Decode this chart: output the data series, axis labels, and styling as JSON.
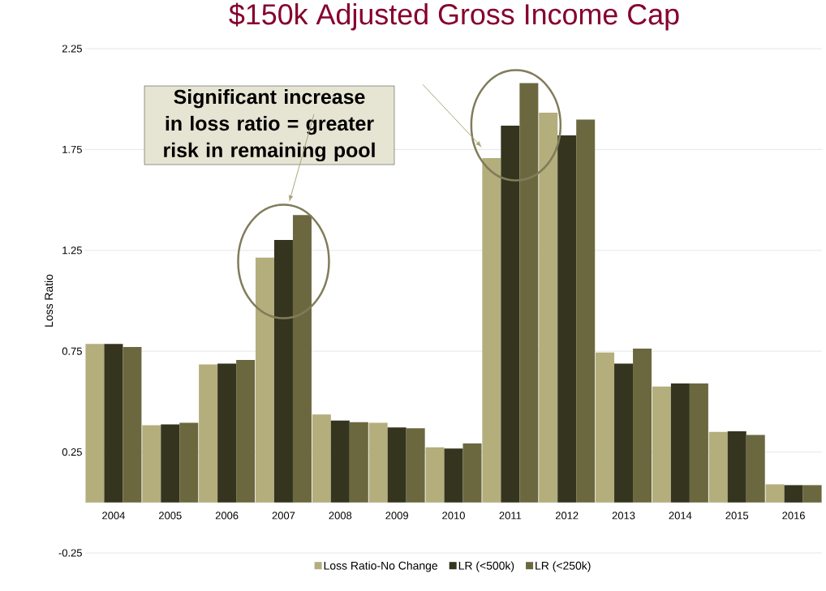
{
  "chart_data": {
    "type": "bar",
    "title": "$150k Adjusted Gross Income Cap",
    "ylabel": "Loss Ratio",
    "categories": [
      "2004",
      "2005",
      "2006",
      "2007",
      "2008",
      "2009",
      "2010",
      "2011",
      "2012",
      "2013",
      "2014",
      "2015",
      "2016"
    ],
    "series": [
      {
        "name": "Loss Ratio-No Change",
        "color": "#b3ae7c",
        "values": [
          0.786,
          0.383,
          0.684,
          1.214,
          0.436,
          0.395,
          0.274,
          1.707,
          1.932,
          0.744,
          0.575,
          0.35,
          0.09
        ]
      },
      {
        "name": "LR (<500k)",
        "color": "#35341f",
        "values": [
          0.786,
          0.387,
          0.688,
          1.301,
          0.406,
          0.372,
          0.267,
          1.868,
          1.82,
          0.688,
          0.59,
          0.353,
          0.086
        ]
      },
      {
        "name": "LR (<250k)",
        "color": "#6b6840",
        "values": [
          0.771,
          0.395,
          0.707,
          1.425,
          0.398,
          0.368,
          0.293,
          2.079,
          1.898,
          0.763,
          0.59,
          0.335,
          0.086
        ]
      }
    ],
    "ylim": [
      -0.25,
      2.25
    ],
    "yticks": [
      -0.25,
      0.25,
      0.75,
      1.25,
      1.75,
      2.25
    ],
    "grid": "y",
    "legend": "bottom",
    "annotations": [
      "Significant increase in loss ratio = greater risk in remaining pool"
    ]
  }
}
